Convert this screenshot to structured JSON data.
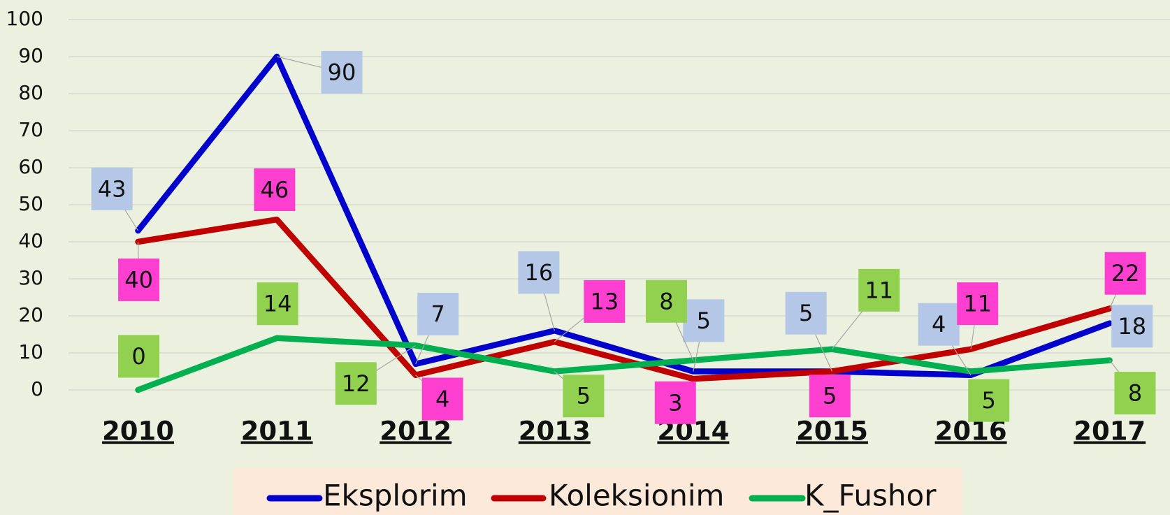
{
  "chart_data": {
    "type": "line",
    "categories": [
      "2010",
      "2011",
      "2012",
      "2013",
      "2014",
      "2015",
      "2016",
      "2017"
    ],
    "series": [
      {
        "name": "Eksplorim",
        "color": "#0000cc",
        "label_color": "#b4c7e7",
        "values": [
          43,
          90,
          7,
          16,
          5,
          5,
          4,
          18
        ]
      },
      {
        "name": "Koleksionim",
        "color": "#c00000",
        "label_color": "#ff3fcf",
        "values": [
          40,
          46,
          4,
          13,
          3,
          5,
          11,
          22
        ]
      },
      {
        "name": "K_Fushor",
        "color": "#00b050",
        "label_color": "#92d050",
        "values": [
          0,
          14,
          12,
          5,
          8,
          11,
          5,
          8
        ]
      }
    ],
    "ylim": [
      0,
      100
    ],
    "yticks": [
      0,
      10,
      20,
      30,
      40,
      50,
      60,
      70,
      80,
      90,
      100
    ],
    "grid": true,
    "legend": "bottom"
  }
}
